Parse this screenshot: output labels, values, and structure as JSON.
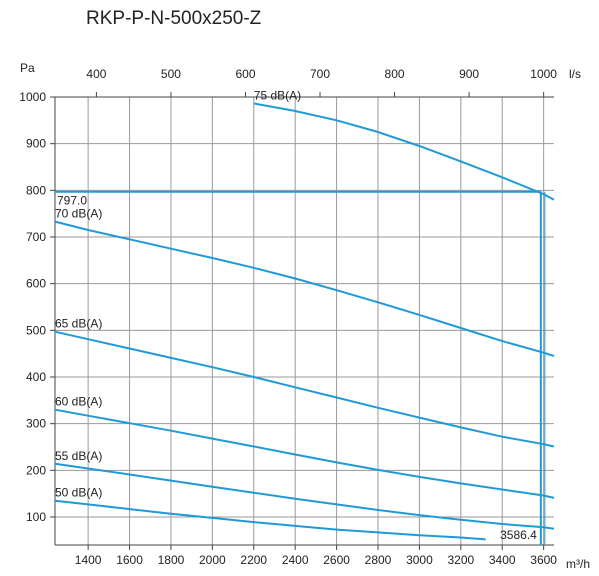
{
  "chart_data": {
    "type": "line",
    "title": "RKP-P-N-500x250-Z",
    "xlabel": "m³/h",
    "ylabel": "Pa",
    "x2label": "l/s",
    "xlim": [
      1240,
      3650
    ],
    "ylim": [
      40,
      1000
    ],
    "grid": true,
    "x_ticks": [
      1400,
      1600,
      1800,
      2000,
      2200,
      2400,
      2600,
      2800,
      3000,
      3200,
      3400,
      3600
    ],
    "y_ticks": [
      100,
      200,
      300,
      400,
      500,
      600,
      700,
      800,
      900,
      1000
    ],
    "x2_ticks": [
      400,
      500,
      600,
      700,
      800,
      900,
      1000
    ],
    "series": [
      {
        "name": "75 dB(A)",
        "x": [
          2200,
          2400,
          2600,
          2800,
          3000,
          3200,
          3400,
          3600,
          3650
        ],
        "y": [
          986,
          970,
          950,
          925,
          895,
          862,
          828,
          792,
          780
        ]
      },
      {
        "name": "70 dB(A)",
        "x": [
          1240,
          1400,
          1600,
          1800,
          2000,
          2200,
          2400,
          2600,
          2800,
          3000,
          3200,
          3400,
          3600,
          3650
        ],
        "y": [
          733,
          715,
          695,
          675,
          655,
          634,
          611,
          586,
          560,
          533,
          505,
          477,
          452,
          445
        ]
      },
      {
        "name": "65 dB(A)",
        "x": [
          1240,
          1400,
          1600,
          1800,
          2000,
          2200,
          2400,
          2600,
          2800,
          3000,
          3200,
          3400,
          3600,
          3650
        ],
        "y": [
          497,
          481,
          461,
          441,
          421,
          400,
          378,
          356,
          334,
          313,
          292,
          272,
          256,
          251
        ]
      },
      {
        "name": "60 dB(A)",
        "x": [
          1240,
          1400,
          1600,
          1800,
          2000,
          2200,
          2400,
          2600,
          2800,
          3000,
          3200,
          3400,
          3600,
          3650
        ],
        "y": [
          330,
          317,
          301,
          285,
          268,
          251,
          234,
          217,
          201,
          186,
          172,
          159,
          146,
          141
        ]
      },
      {
        "name": "55 dB(A)",
        "x": [
          1240,
          1400,
          1600,
          1800,
          2000,
          2200,
          2400,
          2600,
          2800,
          3000,
          3200,
          3400,
          3600,
          3650
        ],
        "y": [
          214,
          204,
          191,
          178,
          165,
          152,
          139,
          127,
          115,
          104,
          94,
          85,
          78,
          75
        ]
      },
      {
        "name": "50 dB(A)",
        "x": [
          1240,
          1400,
          1600,
          1800,
          2000,
          2200,
          2400,
          2600,
          2800,
          3000,
          3200,
          3320
        ],
        "y": [
          135,
          127,
          117,
          107,
          98,
          89,
          81,
          73,
          67,
          61,
          56,
          52
        ]
      }
    ],
    "operating_point": {
      "x": 3586.4,
      "y": 797.0,
      "x_label": "3586.4",
      "y_label": "797.0"
    },
    "colors": {
      "curve": "#1f9ad6",
      "grid": "#9a9a9a",
      "axis": "#444444",
      "text": "#222222"
    }
  }
}
